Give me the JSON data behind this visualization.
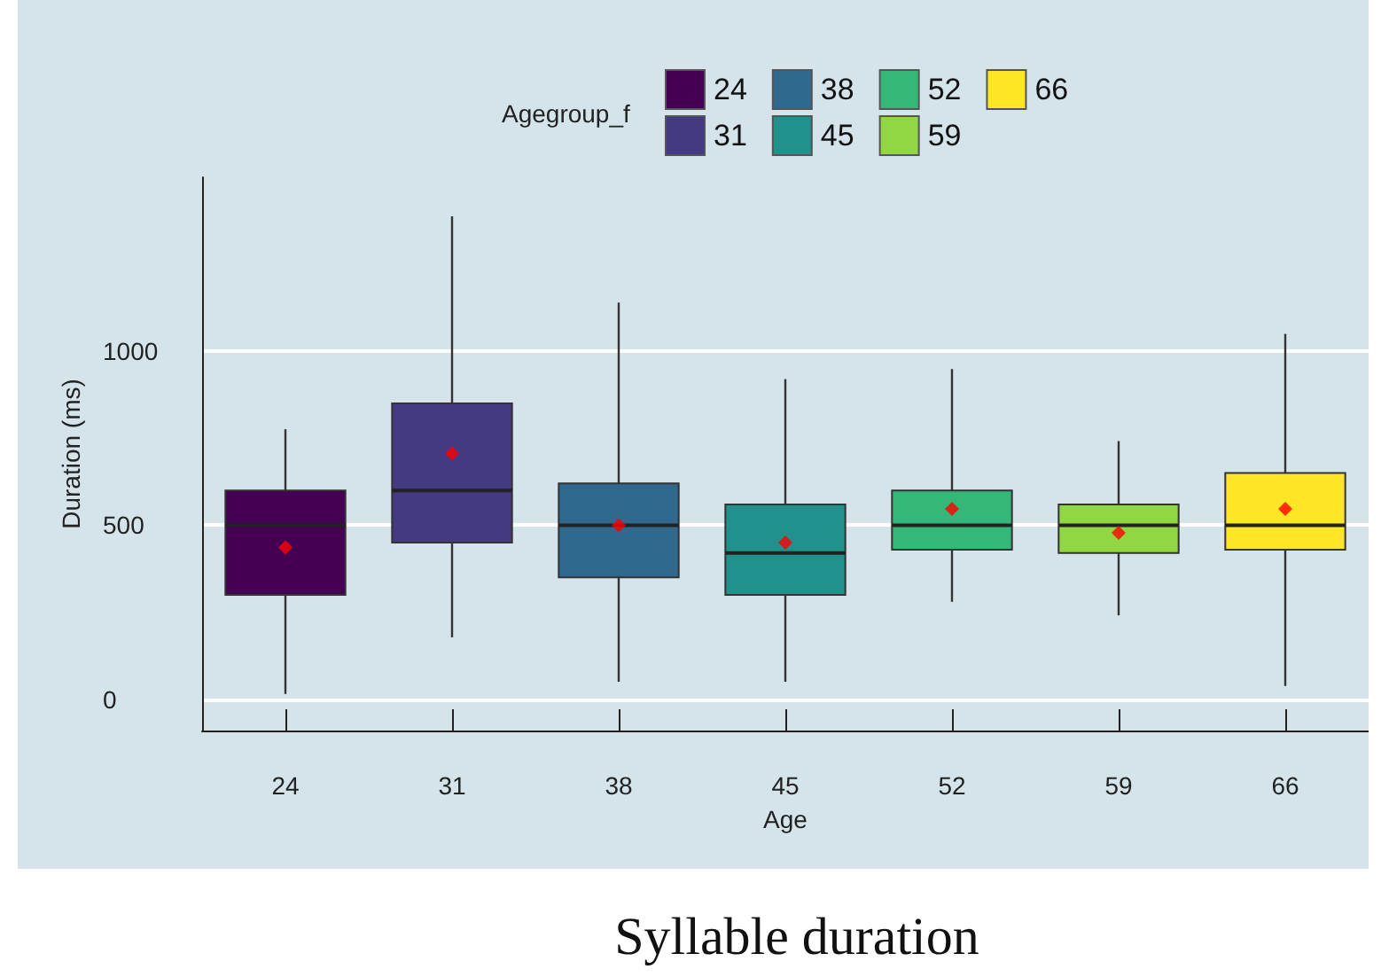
{
  "chart_data": {
    "type": "box",
    "title": "Syllable duration",
    "xlabel": "Age",
    "ylabel": "Duration (ms)",
    "legend_title": "Agegroup_f",
    "categories": [
      "24",
      "31",
      "38",
      "45",
      "52",
      "59",
      "66"
    ],
    "series": [
      {
        "name": "24",
        "color": "#440154",
        "x": [
          "24"
        ],
        "boxes": [
          {
            "low": 15,
            "q1": 300,
            "median": 500,
            "q3": 600,
            "high": 776,
            "mean": 436
          }
        ]
      },
      {
        "name": "31",
        "color": "#443983",
        "x": [
          "31"
        ],
        "boxes": [
          {
            "low": 178,
            "q1": 450,
            "median": 600,
            "q3": 850,
            "high": 1388,
            "mean": 706
          }
        ]
      },
      {
        "name": "38",
        "color": "#31688e",
        "x": [
          "38"
        ],
        "boxes": [
          {
            "low": 50,
            "q1": 350,
            "median": 500,
            "q3": 620,
            "high": 1140,
            "mean": 500
          }
        ]
      },
      {
        "name": "45",
        "color": "#21918c",
        "x": [
          "45"
        ],
        "boxes": [
          {
            "low": 50,
            "q1": 300,
            "median": 420,
            "q3": 560,
            "high": 920,
            "mean": 450
          }
        ]
      },
      {
        "name": "52",
        "color": "#35b779",
        "x": [
          "52"
        ],
        "boxes": [
          {
            "low": 280,
            "q1": 430,
            "median": 500,
            "q3": 600,
            "high": 949,
            "mean": 547
          }
        ]
      },
      {
        "name": "59",
        "color": "#90d743",
        "x": [
          "59"
        ],
        "boxes": [
          {
            "low": 241,
            "q1": 420,
            "median": 500,
            "q3": 560,
            "high": 742,
            "mean": 478
          }
        ]
      },
      {
        "name": "66",
        "color": "#fde725",
        "x": [
          "66"
        ],
        "boxes": [
          {
            "low": 38,
            "q1": 430,
            "median": 500,
            "q3": 650,
            "high": 1050,
            "mean": 547
          }
        ]
      }
    ],
    "ylim": [
      -90,
      1500
    ],
    "yticks": [
      0,
      500,
      1000
    ],
    "grid": "y",
    "legend": "top",
    "marker": "diamond"
  }
}
